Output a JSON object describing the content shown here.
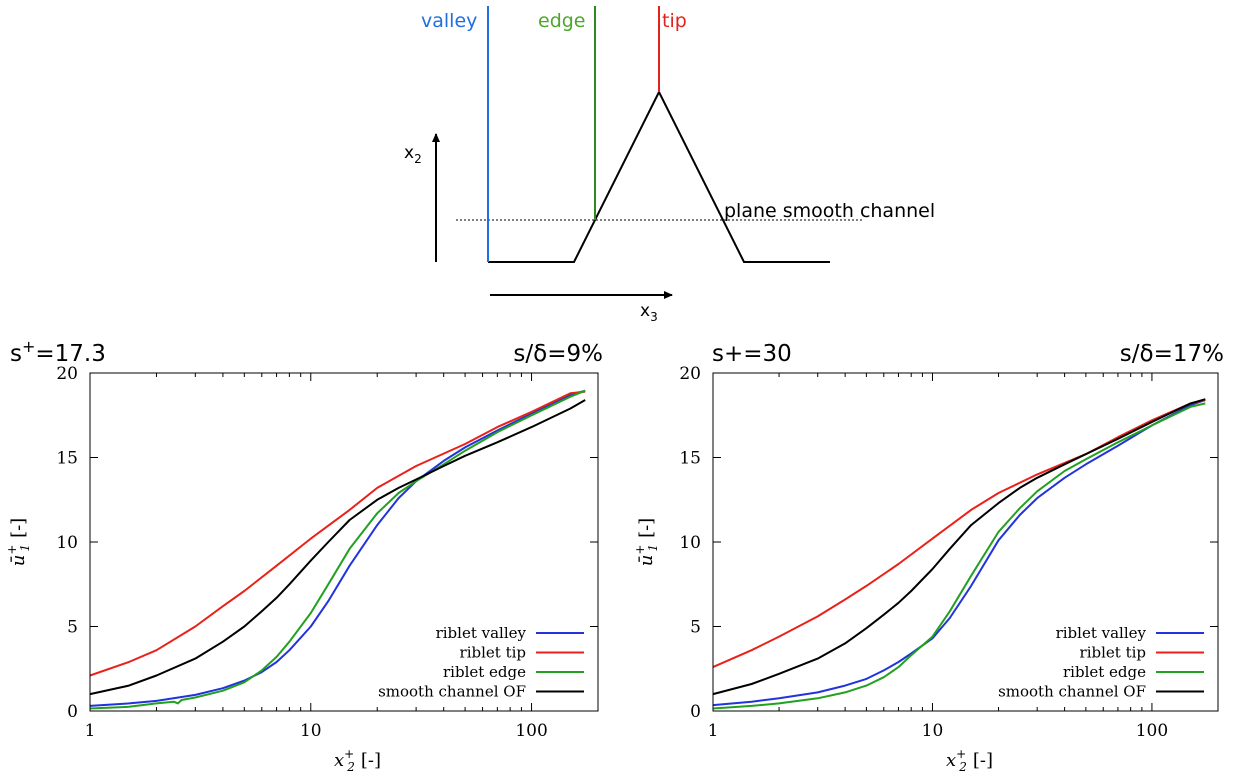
{
  "schematic": {
    "labels": {
      "valley": "valley",
      "edge": "edge",
      "tip": "tip",
      "x2_axis": "x",
      "x2_sub": "2",
      "x3_axis": "x",
      "x3_sub": "3",
      "plane": "plane smooth channel"
    },
    "colors": {
      "valley": "#1f6fe0",
      "edge": "#2d8a1f",
      "tip": "#e0231c",
      "profile": "#000000"
    }
  },
  "chart_data": [
    {
      "type": "line",
      "title_left_prefix": "s",
      "title_left_sup": "+",
      "title_left_suffix": "=17.3",
      "title_right": "s/δ=9%",
      "xlabel_var": "x",
      "xlabel_sup": "+",
      "xlabel_sub": "2",
      "xlabel_unit": "[-]",
      "ylabel_var": "ū",
      "ylabel_sup": "+",
      "ylabel_sub": "1",
      "ylabel_unit": "[-]",
      "xscale": "log",
      "xlim": [
        1,
        200
      ],
      "ylim": [
        0,
        20
      ],
      "xticks": [
        1,
        10,
        100
      ],
      "yticks": [
        0,
        5,
        10,
        15,
        20
      ],
      "legend_position": "bottom-right",
      "series": [
        {
          "name": "riblet valley",
          "color": "#2233dd",
          "x": [
            1,
            1.5,
            2,
            3,
            4,
            5,
            6,
            7,
            8,
            10,
            12,
            15,
            20,
            25,
            30,
            40,
            50,
            70,
            100,
            150,
            175
          ],
          "y": [
            0.3,
            0.45,
            0.6,
            0.95,
            1.35,
            1.8,
            2.3,
            2.9,
            3.6,
            5.0,
            6.5,
            8.6,
            11.0,
            12.6,
            13.6,
            14.8,
            15.6,
            16.6,
            17.6,
            18.7,
            18.95
          ]
        },
        {
          "name": "riblet tip",
          "color": "#e8221a",
          "x": [
            1,
            1.5,
            2,
            3,
            4,
            5,
            7,
            10,
            15,
            20,
            30,
            50,
            70,
            100,
            150,
            175
          ],
          "y": [
            2.1,
            2.9,
            3.6,
            5.0,
            6.2,
            7.1,
            8.6,
            10.2,
            11.9,
            13.2,
            14.5,
            15.8,
            16.8,
            17.7,
            18.8,
            18.9
          ]
        },
        {
          "name": "riblet edge",
          "color": "#22a020",
          "x": [
            1,
            1.5,
            2,
            2.4,
            2.5,
            2.6,
            3,
            4,
            5,
            6,
            7,
            8,
            10,
            12,
            15,
            20,
            25,
            30,
            40,
            50,
            70,
            100,
            150,
            175
          ],
          "y": [
            0.15,
            0.25,
            0.45,
            0.55,
            0.45,
            0.65,
            0.8,
            1.2,
            1.7,
            2.4,
            3.2,
            4.1,
            5.8,
            7.5,
            9.6,
            11.7,
            12.9,
            13.6,
            14.6,
            15.4,
            16.5,
            17.5,
            18.6,
            18.95
          ]
        },
        {
          "name": "smooth channel OF",
          "color": "#000000",
          "x": [
            1,
            1.5,
            2,
            3,
            4,
            5,
            6,
            7,
            8,
            10,
            12,
            15,
            20,
            25,
            30,
            40,
            50,
            70,
            100,
            150,
            175
          ],
          "y": [
            1.0,
            1.5,
            2.1,
            3.1,
            4.1,
            5.0,
            5.9,
            6.7,
            7.5,
            8.9,
            10.0,
            11.3,
            12.5,
            13.2,
            13.7,
            14.5,
            15.1,
            15.9,
            16.8,
            17.9,
            18.4
          ]
        }
      ]
    },
    {
      "type": "line",
      "title_left_prefix": "s+=30",
      "title_left_sup": "",
      "title_left_suffix": "",
      "title_right": "s/δ=17%",
      "xlabel_var": "x",
      "xlabel_sup": "+",
      "xlabel_sub": "2",
      "xlabel_unit": "[-]",
      "ylabel_var": "ū",
      "ylabel_sup": "+",
      "ylabel_sub": "1",
      "ylabel_unit": "[-]",
      "xscale": "log",
      "xlim": [
        1,
        200
      ],
      "ylim": [
        0,
        20
      ],
      "xticks": [
        1,
        10,
        100
      ],
      "yticks": [
        0,
        5,
        10,
        15,
        20
      ],
      "legend_position": "bottom-right",
      "series": [
        {
          "name": "riblet valley",
          "color": "#2233dd",
          "x": [
            1,
            1.5,
            2,
            3,
            4,
            5,
            6,
            7,
            8,
            10,
            12,
            15,
            20,
            25,
            30,
            40,
            50,
            70,
            100,
            150,
            175
          ],
          "y": [
            0.35,
            0.55,
            0.75,
            1.1,
            1.5,
            1.9,
            2.4,
            2.9,
            3.4,
            4.3,
            5.5,
            7.4,
            10.1,
            11.6,
            12.6,
            13.8,
            14.6,
            15.7,
            16.9,
            18.1,
            18.4
          ]
        },
        {
          "name": "riblet tip",
          "color": "#e8221a",
          "x": [
            1,
            1.5,
            2,
            3,
            4,
            5,
            7,
            10,
            15,
            20,
            30,
            50,
            70,
            100,
            150,
            175
          ],
          "y": [
            2.6,
            3.6,
            4.4,
            5.6,
            6.6,
            7.4,
            8.7,
            10.2,
            11.9,
            12.9,
            14.0,
            15.2,
            16.2,
            17.2,
            18.2,
            18.4
          ]
        },
        {
          "name": "riblet edge",
          "color": "#22a020",
          "x": [
            1,
            1.5,
            2,
            3,
            4,
            5,
            6,
            7,
            8,
            10,
            12,
            15,
            20,
            25,
            30,
            40,
            50,
            70,
            100,
            150,
            175
          ],
          "y": [
            0.15,
            0.3,
            0.45,
            0.75,
            1.1,
            1.5,
            2.0,
            2.6,
            3.3,
            4.4,
            5.9,
            8.0,
            10.6,
            12.0,
            13.0,
            14.2,
            14.9,
            15.9,
            16.9,
            18.0,
            18.2
          ]
        },
        {
          "name": "smooth channel OF",
          "color": "#000000",
          "x": [
            1,
            1.5,
            2,
            3,
            4,
            5,
            6,
            7,
            8,
            10,
            12,
            15,
            20,
            25,
            30,
            40,
            50,
            70,
            100,
            150,
            175
          ],
          "y": [
            1.0,
            1.6,
            2.2,
            3.1,
            4.0,
            4.9,
            5.7,
            6.4,
            7.1,
            8.4,
            9.6,
            11.0,
            12.3,
            13.2,
            13.8,
            14.6,
            15.2,
            16.1,
            17.1,
            18.2,
            18.45
          ]
        }
      ]
    }
  ]
}
